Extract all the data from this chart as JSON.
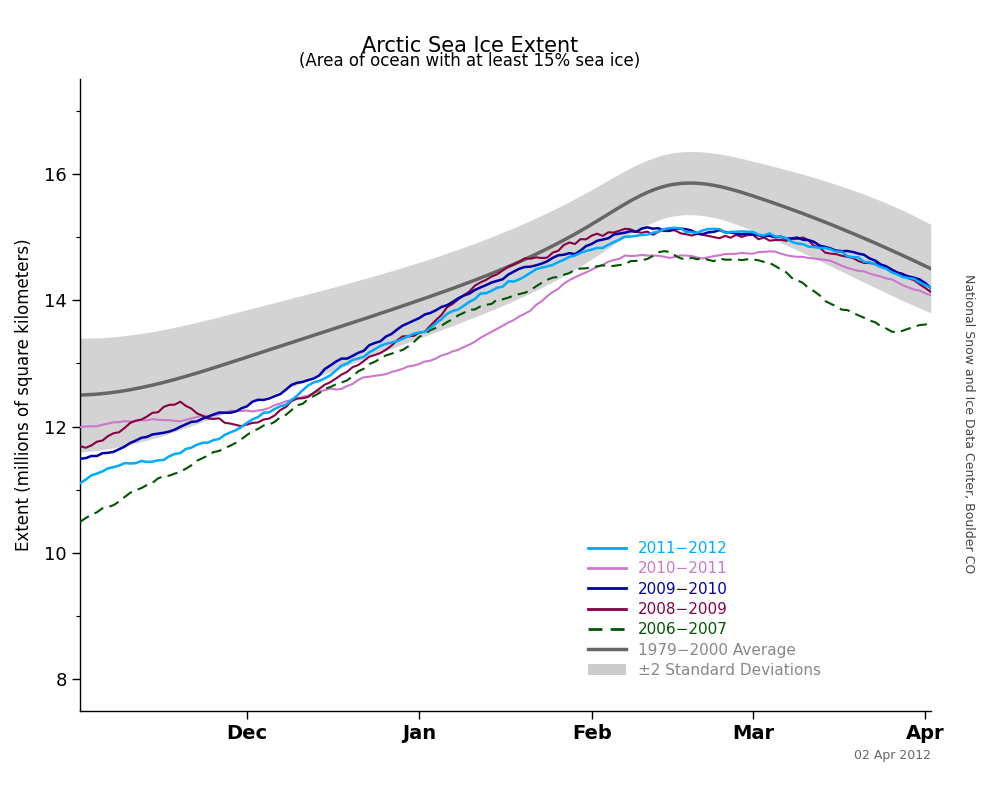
{
  "title": "Arctic Sea Ice Extent",
  "subtitle": "(Area of ocean with at least 15% sea ice)",
  "ylabel": "Extent (millions of square kilometers)",
  "watermark": "02 Apr 2012",
  "credit": "National Snow and Ice Data Center, Boulder CO",
  "ylim": [
    7.5,
    17.5
  ],
  "yticks": [
    8,
    10,
    12,
    14,
    16
  ],
  "colors": {
    "2011-2012": "#00AAFF",
    "2010-2011": "#CC77CC",
    "2009-2010": "#0000AA",
    "2008-2009": "#880044",
    "2006-2007": "#005500",
    "average": "#666666",
    "std_fill": "#CCCCCC"
  },
  "background": "#FFFFFF"
}
